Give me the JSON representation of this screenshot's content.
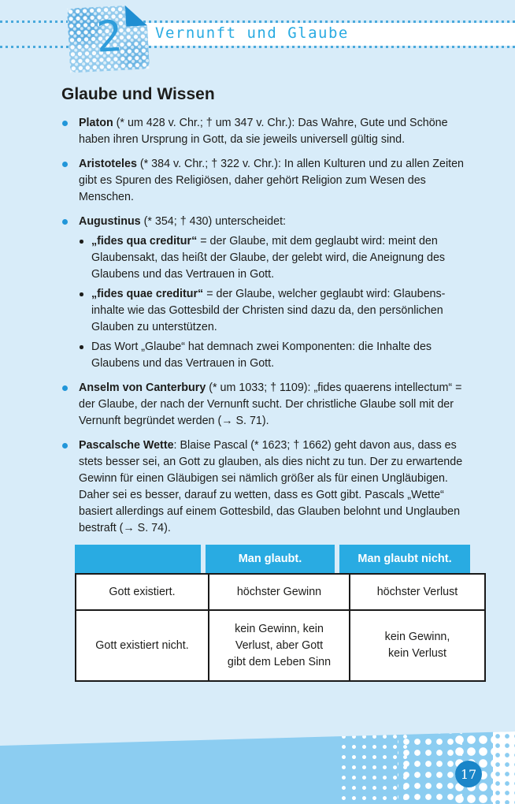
{
  "page": {
    "chapter_number": "2",
    "chapter_title": "Vernunft und Glaube",
    "page_number": "17"
  },
  "content": {
    "heading": "Glaube und Wissen",
    "list": [
      {
        "lead": "Platon",
        "rest": " (* um 428 v. Chr.; † um 347 v. Chr.): Das Wahre, Gute und Schöne haben ihren Ursprung in Gott, da sie jeweils universell gültig sind."
      },
      {
        "lead": "Aristoteles",
        "rest": " (* 384 v. Chr.; † 322 v. Chr.): In allen Kulturen und zu allen Zeiten gibt es Spuren des Religiösen, daher gehört Religion zum Wesen des Menschen."
      },
      {
        "lead": "Augustinus",
        "rest": " (* 354; † 430) unterscheidet:",
        "sub": [
          {
            "lead": "„fides qua creditur“",
            "rest": " = der Glaube, mit dem geglaubt wird: meint den Glaubensakt, das heißt der Glaube, der gelebt wird, die Aneignung des Glaubens und das Vertrauen in Gott."
          },
          {
            "lead": "„fides quae creditur“",
            "rest": " = der Glaube, welcher geglaubt wird: Glaubens­inhalte wie das Gottesbild der Christen sind dazu da, den persön­lichen Glauben zu unterstützen."
          },
          {
            "lead": "",
            "rest": "Das Wort „Glaube“ hat demnach zwei Komponenten: die Inhalte des Glaubens und das Vertrauen in Gott."
          }
        ]
      },
      {
        "lead": "Anselm von Canterbury",
        "rest": " (* um 1033; † 1109): „fides quaerens intellectum“ = der Glaube, der nach der Vernunft sucht. Der christliche Glaube soll mit der Vernunft begründet werden (→ S. 71)."
      },
      {
        "lead": "Pascalsche Wette",
        "rest": ": Blaise Pascal (* 1623; † 1662) geht davon aus, dass es stets besser sei, an Gott zu glauben, als dies nicht zu tun. Der zu erwartende Gewinn für einen Gläubigen sei nämlich größer als für einen Ungläubigen. Daher sei es besser, darauf zu wetten, dass es Gott gibt. Pascals „Wette“ basiert allerdings auf einem Gottesbild, das Glauben belohnt und Unglauben bestraft (→ S. 74)."
      }
    ],
    "table": {
      "headers": [
        "",
        "Man glaubt.",
        "Man glaubt nicht."
      ],
      "rows": [
        [
          "Gott existiert.",
          "höchster Gewinn",
          "höchster Verlust"
        ],
        [
          "Gott existiert nicht.",
          "kein Gewinn, kein\nVerlust, aber Gott\ngibt dem Leben Sinn",
          "kein Gewinn,\nkein Verlust"
        ]
      ]
    }
  }
}
